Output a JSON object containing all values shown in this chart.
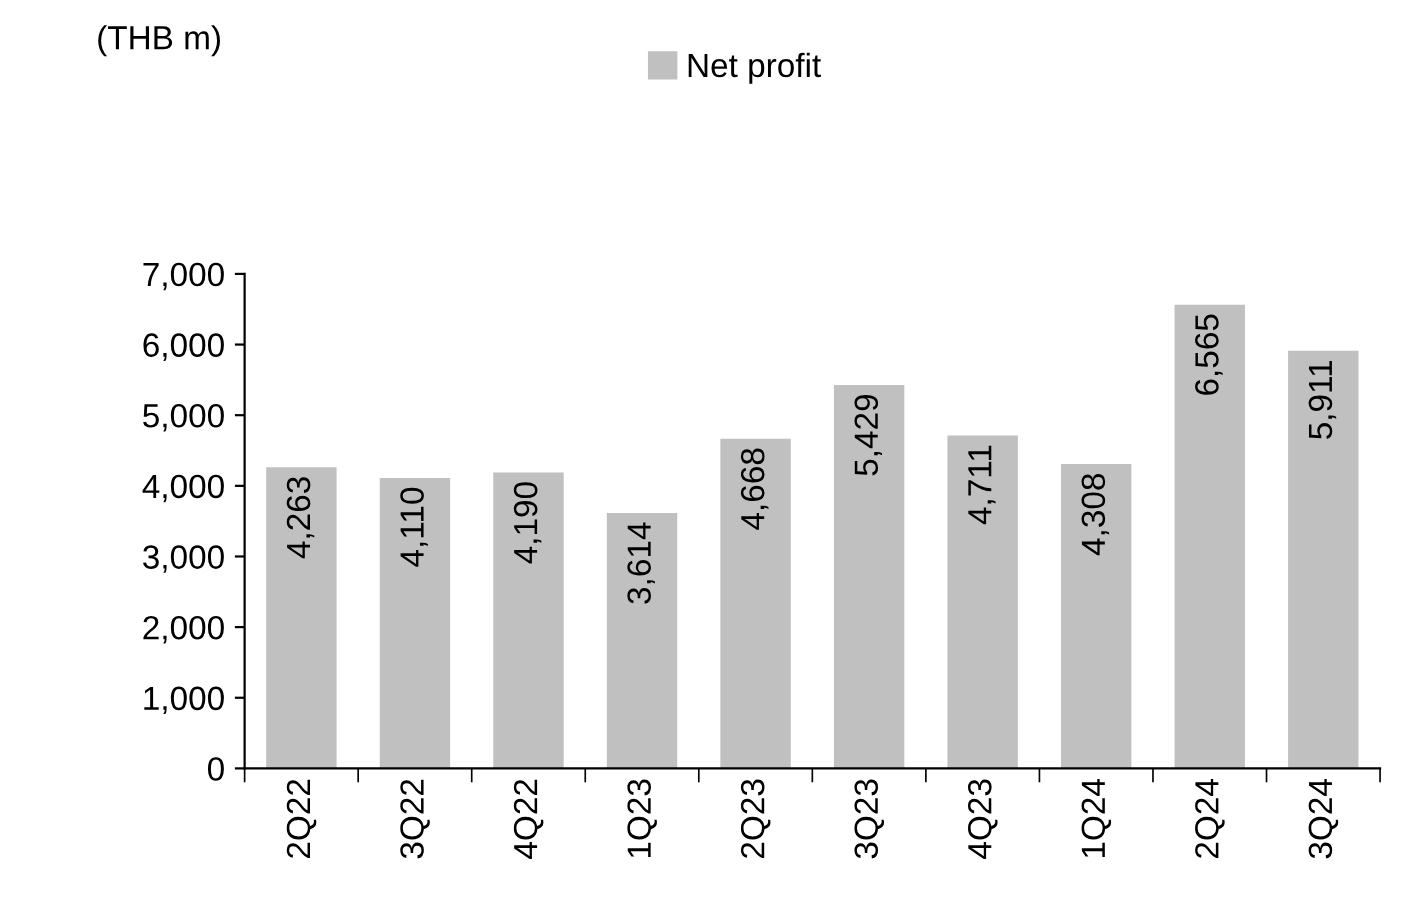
{
  "chart_data": {
    "type": "bar",
    "annotations": [
      "(THB m)"
    ],
    "categories": [
      "2Q22",
      "3Q22",
      "4Q22",
      "1Q23",
      "2Q23",
      "3Q23",
      "4Q23",
      "1Q24",
      "2Q24",
      "3Q24"
    ],
    "series": [
      {
        "name": "Net profit",
        "color": "#c0c0c0",
        "values": [
          4263,
          4110,
          4190,
          3614,
          4668,
          5429,
          4711,
          4308,
          6565,
          5911
        ]
      }
    ],
    "value_labels": [
      "4,263",
      "4,110",
      "4,190",
      "3,614",
      "4,668",
      "5,429",
      "4,711",
      "4,308",
      "6,565",
      "5,911"
    ],
    "ylim": [
      0,
      7000
    ],
    "yticks": [
      {
        "value": 0,
        "label": "0"
      },
      {
        "value": 1000,
        "label": "1,000"
      },
      {
        "value": 2000,
        "label": "2,000"
      },
      {
        "value": 3000,
        "label": "3,000"
      },
      {
        "value": 4000,
        "label": "4,000"
      },
      {
        "value": 5000,
        "label": "5,000"
      },
      {
        "value": 6000,
        "label": "6,000"
      },
      {
        "value": 7000,
        "label": "7,000"
      }
    ],
    "grid": false,
    "legend": "top"
  }
}
